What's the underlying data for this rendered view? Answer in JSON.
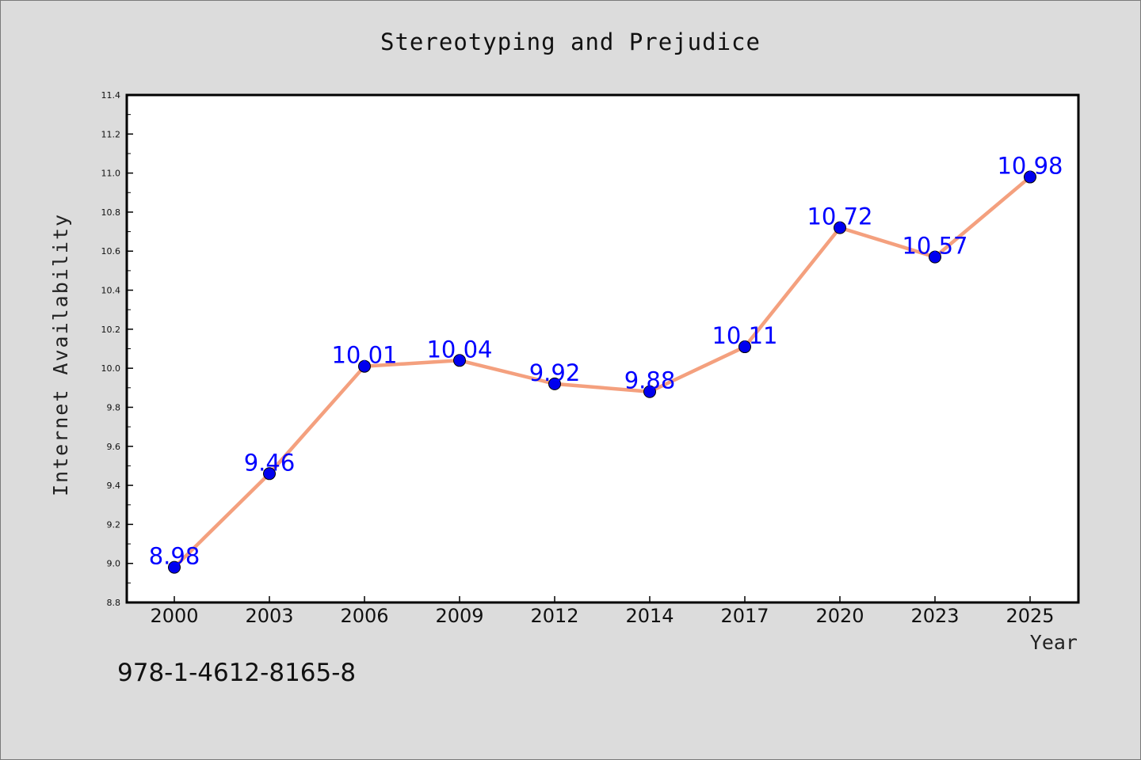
{
  "chart_data": {
    "type": "line",
    "title": "Stereotyping and Prejudice",
    "xlabel": "Year",
    "ylabel": "Internet Availability",
    "categories": [
      "2000",
      "2003",
      "2006",
      "2009",
      "2012",
      "2014",
      "2017",
      "2020",
      "2023",
      "2025"
    ],
    "values": [
      8.98,
      9.46,
      10.01,
      10.04,
      9.92,
      9.88,
      10.11,
      10.72,
      10.57,
      10.98
    ],
    "data_labels": [
      "8.98",
      "9.46",
      "10.01",
      "10.04",
      "9.92",
      "9.88",
      "10.11",
      "10.72",
      "10.57",
      "10.98"
    ],
    "ylim": [
      8.8,
      11.4
    ],
    "yticks": [
      "8.8",
      "9.0",
      "9.2",
      "9.4",
      "9.6",
      "9.8",
      "10.0",
      "10.2",
      "10.4",
      "10.6",
      "10.8",
      "11.0",
      "11.2",
      "11.4"
    ],
    "grid": false,
    "colors": {
      "line": "#f4a07e",
      "marker": "#0000ee",
      "label": "#0000ff",
      "background": "#dcdcdc",
      "plot_area": "#ffffff"
    }
  },
  "footer": {
    "code": "978-1-4612-8165-8"
  }
}
